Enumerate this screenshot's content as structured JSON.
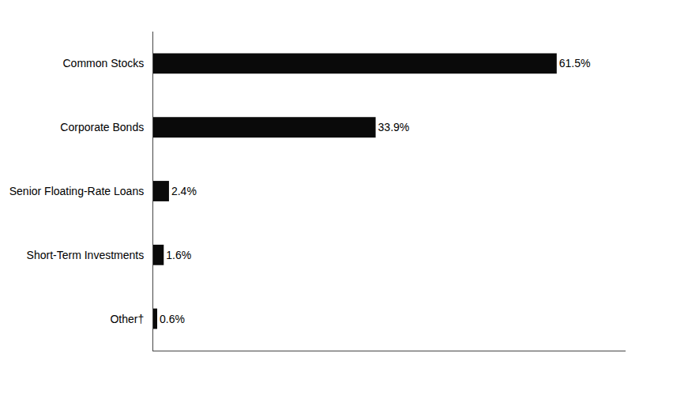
{
  "chart_data": {
    "type": "bar",
    "orientation": "horizontal",
    "categories": [
      "Common Stocks",
      "Corporate Bonds",
      "Senior Floating-Rate Loans",
      "Short-Term Investments",
      "Other†"
    ],
    "values": [
      61.5,
      33.9,
      2.4,
      1.6,
      0.6
    ],
    "value_labels": [
      "61.5%",
      "33.9%",
      "2.4%",
      "1.6%",
      "0.6%"
    ],
    "data_labels": true,
    "color": "#0a0a0a",
    "xlim": [
      0,
      72
    ],
    "tick_labels": "y",
    "grid": false
  }
}
